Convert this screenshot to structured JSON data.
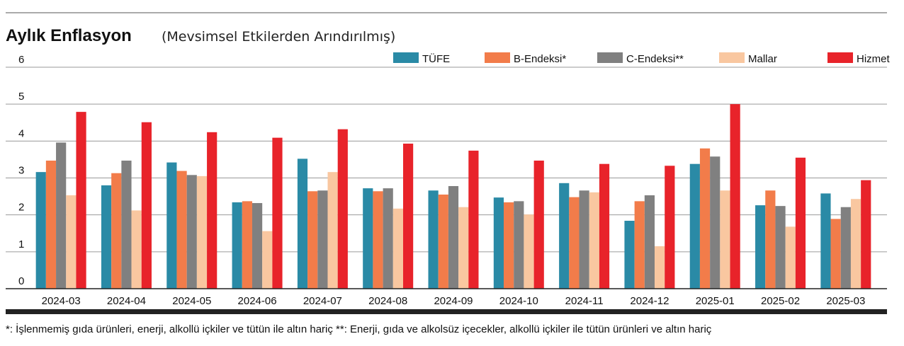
{
  "chart_data": {
    "type": "bar",
    "title": "Aylık Enflasyon",
    "subtitle": "(Mevsimsel Etkilerden Arındırılmış)",
    "footnote": "*: İşlenmemiş gıda ürünleri, enerji, alkollü içkiler ve tütün ile altın hariç **: Enerji, gıda ve alkolsüz içecekler, alkollü içkiler ile tütün ürünleri ve altın hariç",
    "ylim": [
      0,
      6
    ],
    "yticks": [
      "0",
      "1",
      "2",
      "3",
      "4",
      "5",
      "6"
    ],
    "grid": true,
    "legend_position": "top-right",
    "categories": [
      "2024-03",
      "2024-04",
      "2024-05",
      "2024-06",
      "2024-07",
      "2024-08",
      "2024-09",
      "2024-10",
      "2024-11",
      "2024-12",
      "2025-01",
      "2025-02",
      "2025-03"
    ],
    "series": [
      {
        "name": "TÜFE",
        "color": "#2a8aa6",
        "values": [
          3.16,
          2.8,
          3.42,
          2.34,
          3.52,
          2.72,
          2.66,
          2.47,
          2.86,
          1.84,
          3.38,
          2.26,
          2.58
        ]
      },
      {
        "name": "B-Endeksi*",
        "color": "#f27c4a",
        "values": [
          3.47,
          3.13,
          3.19,
          2.37,
          2.64,
          2.64,
          2.55,
          2.34,
          2.48,
          2.37,
          3.8,
          2.66,
          1.89
        ]
      },
      {
        "name": "C-Endeksi**",
        "color": "#808080",
        "values": [
          3.96,
          3.47,
          3.08,
          2.32,
          2.66,
          2.72,
          2.78,
          2.37,
          2.66,
          2.53,
          3.58,
          2.24,
          2.21
        ]
      },
      {
        "name": "Mallar",
        "color": "#f9c7a0",
        "values": [
          2.53,
          2.12,
          3.05,
          1.56,
          3.16,
          2.17,
          2.21,
          2.01,
          2.61,
          1.15,
          2.66,
          1.68,
          2.43
        ]
      },
      {
        "name": "Hizmet",
        "color": "#e8232a",
        "values": [
          4.79,
          4.51,
          4.24,
          4.09,
          4.32,
          3.93,
          3.74,
          3.47,
          3.38,
          3.33,
          5.0,
          3.55,
          2.94
        ]
      }
    ]
  }
}
